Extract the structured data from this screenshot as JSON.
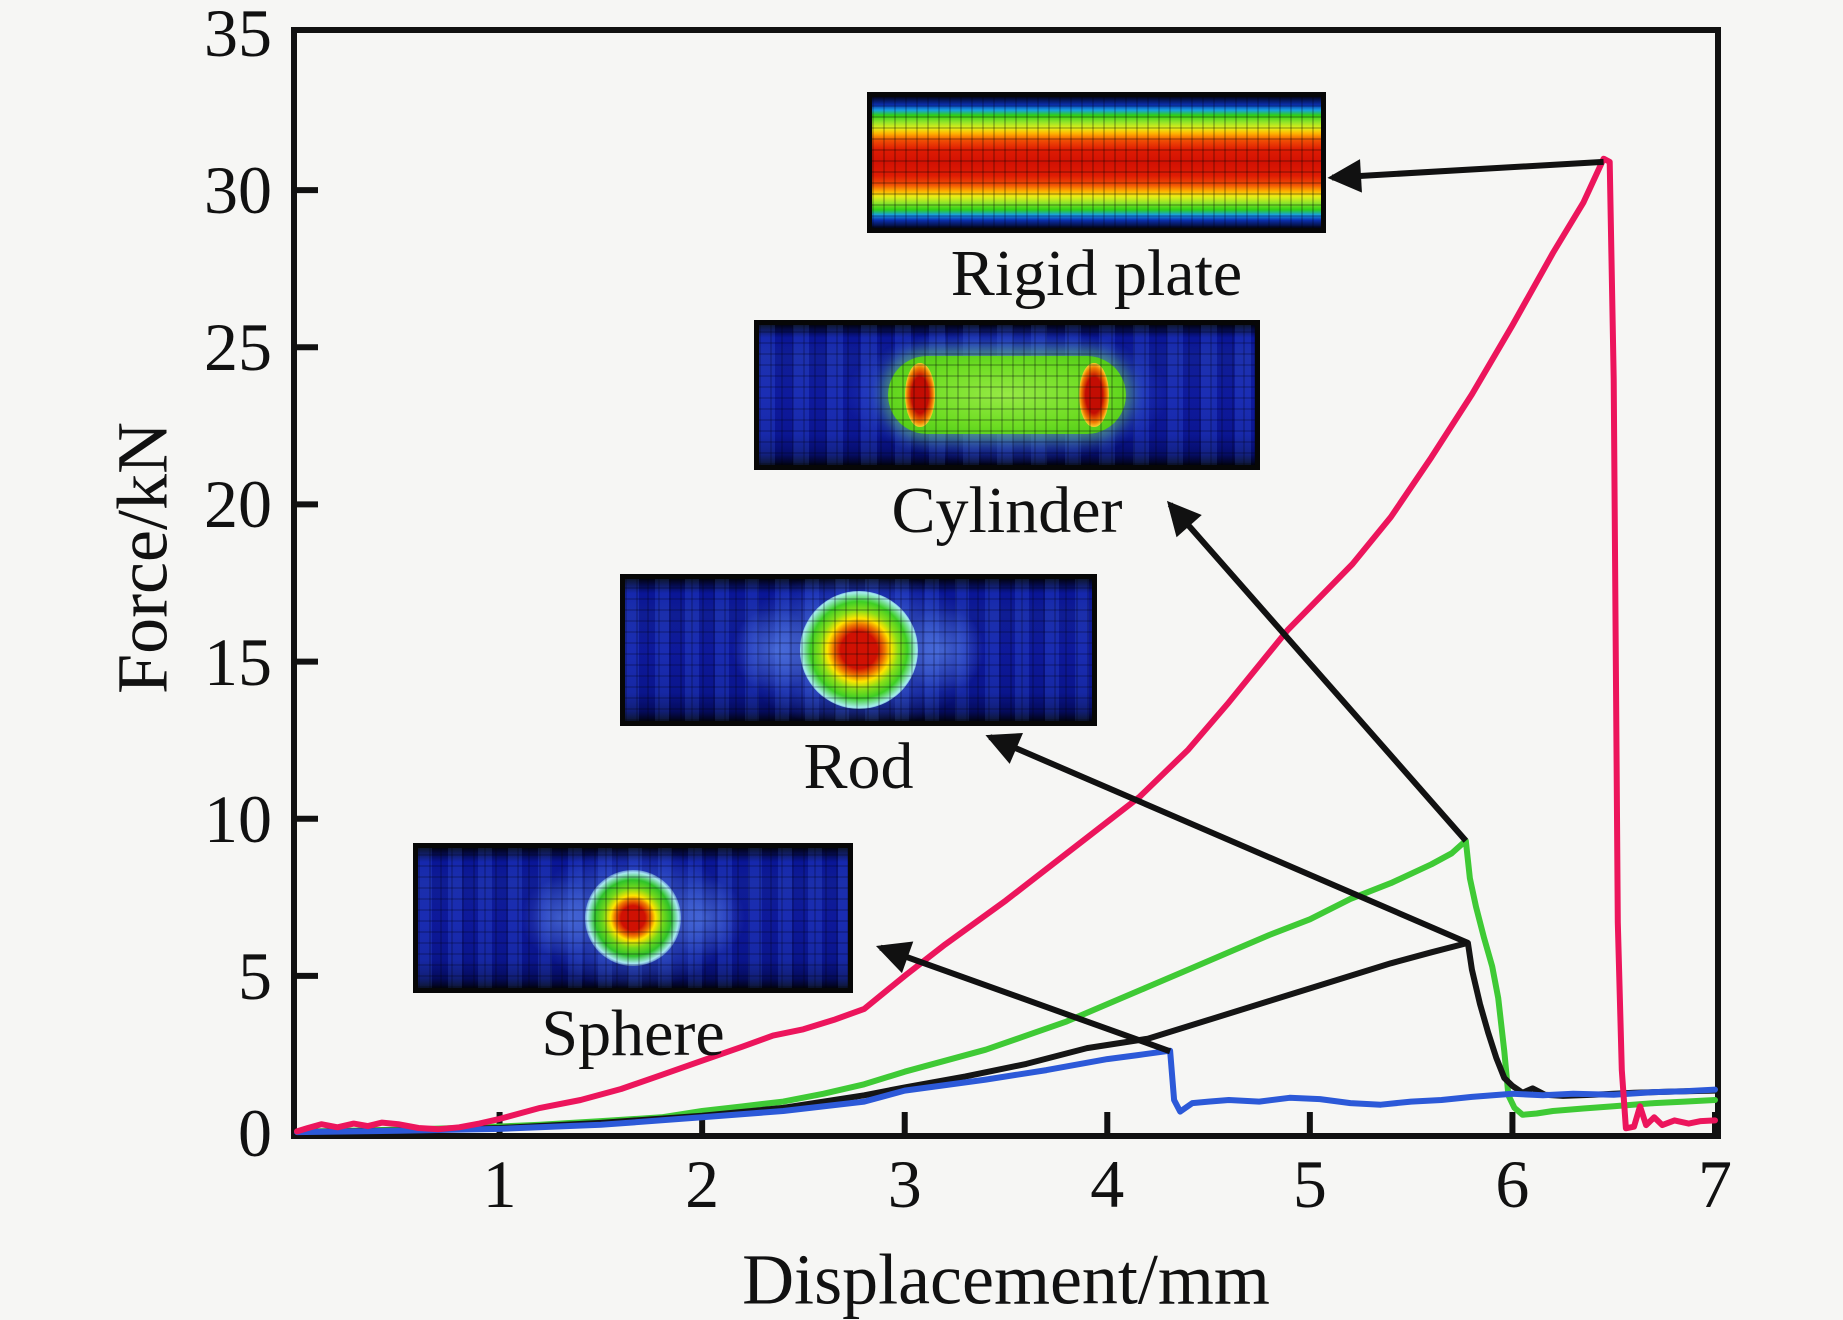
{
  "figure": {
    "background": "#f6f6f4",
    "axis_color": "#111111"
  },
  "axes": {
    "x": {
      "label": "Displacement/mm",
      "ticks": [
        1,
        2,
        3,
        4,
        5,
        6,
        7
      ],
      "range": [
        0,
        7
      ]
    },
    "y": {
      "label": "Force/kN",
      "ticks": [
        0,
        5,
        10,
        15,
        20,
        25,
        30,
        35
      ],
      "range": [
        0,
        35
      ]
    }
  },
  "insets": {
    "rigid_plate": {
      "label": "Rigid plate"
    },
    "cylinder": {
      "label": "Cylinder"
    },
    "rod": {
      "label": "Rod"
    },
    "sphere": {
      "label": "Sphere"
    }
  },
  "chart_data": {
    "type": "line",
    "title": "",
    "xlabel": "Displacement/mm",
    "ylabel": "Force/kN",
    "xlim": [
      0,
      7
    ],
    "ylim": [
      0,
      35
    ],
    "grid": false,
    "legend": "none (annotated with contour insets and arrows)",
    "series": [
      {
        "name": "Cylinder",
        "color": "#3fca35",
        "points": [
          [
            0,
            0.04
          ],
          [
            0.3,
            0.08
          ],
          [
            0.6,
            0.12
          ],
          [
            0.9,
            0.18
          ],
          [
            1.2,
            0.26
          ],
          [
            1.5,
            0.38
          ],
          [
            1.8,
            0.5
          ],
          [
            2,
            0.7
          ],
          [
            2.2,
            0.85
          ],
          [
            2.4,
            1.0
          ],
          [
            2.6,
            1.25
          ],
          [
            2.8,
            1.55
          ],
          [
            3,
            1.95
          ],
          [
            3.2,
            2.3
          ],
          [
            3.4,
            2.65
          ],
          [
            3.6,
            3.1
          ],
          [
            3.8,
            3.55
          ],
          [
            4,
            4.1
          ],
          [
            4.2,
            4.65
          ],
          [
            4.4,
            5.2
          ],
          [
            4.6,
            5.75
          ],
          [
            4.8,
            6.3
          ],
          [
            5,
            6.8
          ],
          [
            5.2,
            7.45
          ],
          [
            5.4,
            7.95
          ],
          [
            5.6,
            8.55
          ],
          [
            5.7,
            8.9
          ],
          [
            5.77,
            9.3
          ],
          [
            5.79,
            8.1
          ],
          [
            5.82,
            7.2
          ],
          [
            5.86,
            6.2
          ],
          [
            5.9,
            5.3
          ],
          [
            5.93,
            4.3
          ],
          [
            5.96,
            2.6
          ],
          [
            5.98,
            1.2
          ],
          [
            6.01,
            0.8
          ],
          [
            6.05,
            0.58
          ],
          [
            6.12,
            0.62
          ],
          [
            6.2,
            0.7
          ],
          [
            6.35,
            0.78
          ],
          [
            6.5,
            0.85
          ],
          [
            6.7,
            0.95
          ],
          [
            6.85,
            1.0
          ],
          [
            7,
            1.05
          ]
        ]
      },
      {
        "name": "Rod",
        "color": "#151515",
        "points": [
          [
            0,
            0.03
          ],
          [
            0.5,
            0.08
          ],
          [
            1,
            0.16
          ],
          [
            1.5,
            0.32
          ],
          [
            2,
            0.55
          ],
          [
            2.4,
            0.8
          ],
          [
            2.8,
            1.2
          ],
          [
            3,
            1.45
          ],
          [
            3.3,
            1.8
          ],
          [
            3.6,
            2.2
          ],
          [
            3.9,
            2.7
          ],
          [
            4.2,
            3.0
          ],
          [
            4.5,
            3.6
          ],
          [
            4.8,
            4.2
          ],
          [
            5.1,
            4.8
          ],
          [
            5.4,
            5.4
          ],
          [
            5.6,
            5.75
          ],
          [
            5.78,
            6.05
          ],
          [
            5.8,
            5.2
          ],
          [
            5.84,
            4.1
          ],
          [
            5.88,
            3.2
          ],
          [
            5.92,
            2.4
          ],
          [
            5.96,
            1.75
          ],
          [
            6,
            1.5
          ],
          [
            6.05,
            1.28
          ],
          [
            6.1,
            1.42
          ],
          [
            6.16,
            1.22
          ],
          [
            6.25,
            1.18
          ],
          [
            6.4,
            1.22
          ],
          [
            6.6,
            1.28
          ],
          [
            6.8,
            1.32
          ],
          [
            7,
            1.35
          ]
        ]
      },
      {
        "name": "Sphere",
        "color": "#2c59d8",
        "points": [
          [
            0,
            0.03
          ],
          [
            0.5,
            0.07
          ],
          [
            1,
            0.13
          ],
          [
            1.5,
            0.26
          ],
          [
            2,
            0.5
          ],
          [
            2.4,
            0.7
          ],
          [
            2.8,
            1.0
          ],
          [
            3,
            1.35
          ],
          [
            3.4,
            1.7
          ],
          [
            3.7,
            2.0
          ],
          [
            4,
            2.35
          ],
          [
            4.15,
            2.48
          ],
          [
            4.31,
            2.62
          ],
          [
            4.33,
            1.05
          ],
          [
            4.36,
            0.68
          ],
          [
            4.42,
            0.95
          ],
          [
            4.5,
            1.0
          ],
          [
            4.6,
            1.05
          ],
          [
            4.75,
            1.0
          ],
          [
            4.9,
            1.12
          ],
          [
            5.05,
            1.08
          ],
          [
            5.2,
            0.95
          ],
          [
            5.35,
            0.9
          ],
          [
            5.5,
            1.0
          ],
          [
            5.65,
            1.05
          ],
          [
            5.8,
            1.15
          ],
          [
            6,
            1.25
          ],
          [
            6.15,
            1.2
          ],
          [
            6.3,
            1.25
          ],
          [
            6.5,
            1.22
          ],
          [
            6.7,
            1.3
          ],
          [
            6.85,
            1.33
          ],
          [
            7,
            1.38
          ]
        ]
      },
      {
        "name": "Rigid plate",
        "color": "#ec155c",
        "points": [
          [
            0,
            0.05
          ],
          [
            0.05,
            0.15
          ],
          [
            0.12,
            0.28
          ],
          [
            0.2,
            0.18
          ],
          [
            0.28,
            0.3
          ],
          [
            0.35,
            0.22
          ],
          [
            0.42,
            0.33
          ],
          [
            0.5,
            0.28
          ],
          [
            0.6,
            0.16
          ],
          [
            0.7,
            0.12
          ],
          [
            0.8,
            0.18
          ],
          [
            0.9,
            0.3
          ],
          [
            1,
            0.45
          ],
          [
            1.2,
            0.8
          ],
          [
            1.4,
            1.05
          ],
          [
            1.6,
            1.4
          ],
          [
            1.8,
            1.85
          ],
          [
            2,
            2.3
          ],
          [
            2.2,
            2.75
          ],
          [
            2.35,
            3.1
          ],
          [
            2.5,
            3.3
          ],
          [
            2.65,
            3.6
          ],
          [
            2.8,
            3.95
          ],
          [
            3,
            5.0
          ],
          [
            3.2,
            6.0
          ],
          [
            3.35,
            6.7
          ],
          [
            3.5,
            7.4
          ],
          [
            3.7,
            8.4
          ],
          [
            3.9,
            9.4
          ],
          [
            4.16,
            10.7
          ],
          [
            4.4,
            12.2
          ],
          [
            4.6,
            13.7
          ],
          [
            4.89,
            16.0
          ],
          [
            5.21,
            18.1
          ],
          [
            5.4,
            19.6
          ],
          [
            5.6,
            21.5
          ],
          [
            5.8,
            23.5
          ],
          [
            6,
            25.7
          ],
          [
            6.2,
            28.0
          ],
          [
            6.35,
            29.6
          ],
          [
            6.45,
            31.0
          ],
          [
            6.48,
            30.9
          ],
          [
            6.5,
            24.0
          ],
          [
            6.52,
            6.7
          ],
          [
            6.54,
            2.0
          ],
          [
            6.56,
            0.15
          ],
          [
            6.6,
            0.2
          ],
          [
            6.63,
            0.85
          ],
          [
            6.66,
            0.25
          ],
          [
            6.7,
            0.5
          ],
          [
            6.74,
            0.25
          ],
          [
            6.8,
            0.4
          ],
          [
            6.87,
            0.3
          ],
          [
            6.93,
            0.38
          ],
          [
            7,
            0.4
          ]
        ]
      }
    ],
    "annotations": [
      {
        "label": "Rigid plate",
        "arrow_from": [
          6.45,
          30.9
        ],
        "arrow_to": [
          5.11,
          30.4
        ]
      },
      {
        "label": "Cylinder",
        "arrow_from": [
          5.77,
          9.3
        ],
        "arrow_to": [
          4.31,
          20.0
        ]
      },
      {
        "label": "Rod",
        "arrow_from": [
          5.78,
          6.05
        ],
        "arrow_to": [
          3.42,
          12.6
        ]
      },
      {
        "label": "Sphere",
        "arrow_from": [
          4.31,
          2.6
        ],
        "arrow_to": [
          2.88,
          5.9
        ]
      }
    ]
  }
}
